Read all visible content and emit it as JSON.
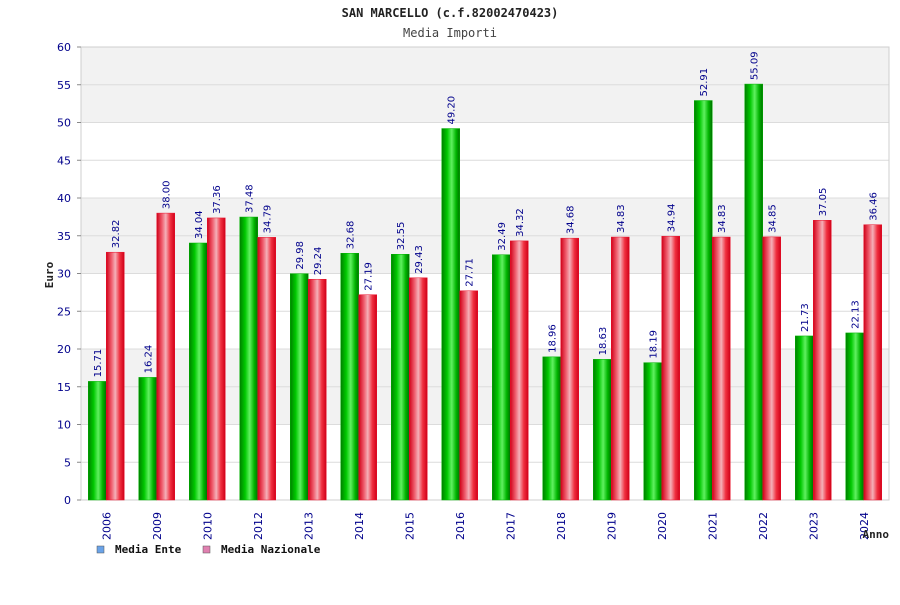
{
  "chart_data": {
    "type": "bar",
    "title": "SAN MARCELLO (c.f.82002470423)",
    "subtitle": "Media Importi",
    "xlabel": "Anno",
    "ylabel": "Euro",
    "ylim": [
      0,
      60
    ],
    "yticks": [
      "0",
      "5",
      "10",
      "15",
      "20",
      "25",
      "30",
      "35",
      "40",
      "45",
      "50",
      "55",
      "60"
    ],
    "grid": true,
    "legend_position": "bottom-left",
    "categories": [
      "2006",
      "2009",
      "2010",
      "2012",
      "2013",
      "2014",
      "2015",
      "2016",
      "2017",
      "2018",
      "2019",
      "2020",
      "2021",
      "2022",
      "2023",
      "2024"
    ],
    "series": [
      {
        "name": "Media Ente",
        "color": "#00b000",
        "legend_color": "#6aa3e8",
        "values": [
          15.71,
          16.24,
          34.04,
          37.48,
          29.98,
          32.68,
          32.55,
          49.2,
          32.49,
          18.96,
          18.63,
          18.19,
          52.91,
          55.09,
          21.73,
          22.13
        ],
        "labels": [
          "15.71",
          "16.24",
          "34.04",
          "37.48",
          "29.98",
          "32.68",
          "32.55",
          "49.20",
          "32.49",
          "18.96",
          "18.63",
          "18.19",
          "52.91",
          "55.09",
          "21.73",
          "22.13"
        ]
      },
      {
        "name": "Media Nazionale",
        "color": "#e8102a",
        "legend_color": "#e080b0",
        "values": [
          32.82,
          38.0,
          37.36,
          34.79,
          29.24,
          27.19,
          29.43,
          27.71,
          34.32,
          34.68,
          34.83,
          34.94,
          34.83,
          34.85,
          37.05,
          36.46
        ],
        "labels": [
          "32.82",
          "38.00",
          "37.36",
          "34.79",
          "29.24",
          "27.19",
          "29.43",
          "27.71",
          "34.32",
          "34.68",
          "34.83",
          "34.94",
          "34.83",
          "34.85",
          "37.05",
          "36.46"
        ]
      }
    ]
  }
}
